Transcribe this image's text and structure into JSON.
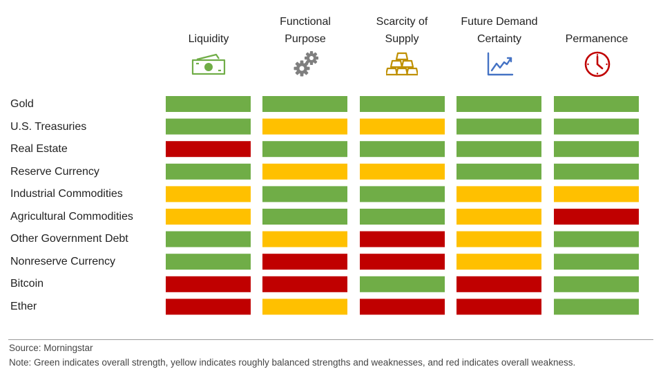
{
  "chart_data": {
    "type": "heatmap",
    "columns": [
      {
        "line1": "",
        "line2": "Liquidity",
        "icon": "money-icon"
      },
      {
        "line1": "Functional",
        "line2": "Purpose",
        "icon": "gears-icon"
      },
      {
        "line1": "Scarcity of",
        "line2": "Supply",
        "icon": "gold-bars-icon"
      },
      {
        "line1": "Future Demand",
        "line2": "Certainty",
        "icon": "line-chart-icon"
      },
      {
        "line1": "",
        "line2": "Permanence",
        "icon": "clock-icon"
      }
    ],
    "rows": [
      "Gold",
      "U.S. Treasuries",
      "Real Estate",
      "Reserve Currency",
      "Industrial Commodities",
      "Agricultural Commodities",
      "Other Government Debt",
      "Nonreserve Currency",
      "Bitcoin",
      "Ether"
    ],
    "values": [
      [
        "green",
        "green",
        "green",
        "green",
        "green"
      ],
      [
        "green",
        "yellow",
        "yellow",
        "green",
        "green"
      ],
      [
        "red",
        "green",
        "green",
        "green",
        "green"
      ],
      [
        "green",
        "yellow",
        "yellow",
        "green",
        "green"
      ],
      [
        "yellow",
        "green",
        "green",
        "yellow",
        "yellow"
      ],
      [
        "yellow",
        "green",
        "green",
        "yellow",
        "red"
      ],
      [
        "green",
        "yellow",
        "red",
        "yellow",
        "green"
      ],
      [
        "green",
        "red",
        "red",
        "yellow",
        "green"
      ],
      [
        "red",
        "red",
        "green",
        "red",
        "green"
      ],
      [
        "red",
        "yellow",
        "red",
        "red",
        "green"
      ]
    ],
    "colors": {
      "green": "#70AD47",
      "yellow": "#FFC000",
      "red": "#C00000"
    },
    "icon_colors": {
      "money-icon": "#70AD47",
      "gears-icon": "#7F7F7F",
      "gold-bars-icon": "#BF9000",
      "line-chart-icon": "#4472C4",
      "clock-icon": "#C00000"
    }
  },
  "footer": {
    "source": "Source: Morningstar",
    "note": "Note: Green indicates overall strength, yellow indicates roughly balanced strengths and weaknesses, and red indicates overall weakness."
  }
}
